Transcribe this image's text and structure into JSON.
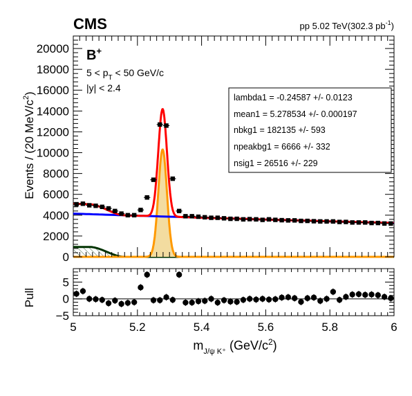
{
  "header": {
    "experiment": "CMS",
    "lumi_prefix": "pp 5.02 TeV(302.3 pb",
    "lumi_sup": "-1",
    "lumi_suffix": ")"
  },
  "annotations": {
    "particle": "B",
    "particle_sup": "+",
    "pt_cut_a": "5 < p",
    "pt_cut_sub": "T",
    "pt_cut_b": " < 50 GeV/c",
    "y_cut": "|y| < 2.4"
  },
  "fit_params": [
    {
      "label": "lambda1 = -0.24587 +/- 0.0123"
    },
    {
      "label": "mean1 =  5.278534 +/- 0.000197"
    },
    {
      "label": "nbkg1 =  182135 +/- 593"
    },
    {
      "label": "npeakbg1 =  6666 +/- 332"
    },
    {
      "label": "nsig1 =  26516 +/- 229"
    }
  ],
  "colors": {
    "total_fit": "#ff0000",
    "signal": "#ff9900",
    "signal_fill": "#f3dca0",
    "combinatorial_bkg": "#0000ff",
    "peaking_bkg": "#003300",
    "data": "#000000"
  },
  "chart_data": [
    {
      "type": "scatter",
      "title": "",
      "xlabel": "m",
      "xlabel_sub": "J/ψ K⁺",
      "xlabel_unit": " (GeV/c",
      "xlabel_unit_sup": "2",
      "xlabel_unit_end": ")",
      "ylabel": "Events / (20 MeV/c",
      "ylabel_sup": "2",
      "ylabel_end": ")",
      "xlim": [
        5.0,
        6.0
      ],
      "ylim": [
        0,
        21200
      ],
      "grid": false,
      "yticks": [
        "0",
        "2000",
        "4000",
        "6000",
        "8000",
        "10000",
        "12000",
        "14000",
        "16000",
        "18000",
        "20000"
      ],
      "x": [
        5.01,
        5.03,
        5.05,
        5.07,
        5.09,
        5.11,
        5.13,
        5.15,
        5.17,
        5.19,
        5.21,
        5.23,
        5.25,
        5.27,
        5.29,
        5.31,
        5.33,
        5.35,
        5.37,
        5.39,
        5.41,
        5.43,
        5.45,
        5.47,
        5.49,
        5.51,
        5.53,
        5.55,
        5.57,
        5.59,
        5.61,
        5.63,
        5.65,
        5.67,
        5.69,
        5.71,
        5.73,
        5.75,
        5.77,
        5.79,
        5.81,
        5.83,
        5.85,
        5.87,
        5.89,
        5.91,
        5.93,
        5.95,
        5.97,
        5.99
      ],
      "series": [
        {
          "values": [
            5050,
            5100,
            4950,
            4900,
            4800,
            4650,
            4400,
            4150,
            4000,
            4000,
            4500,
            5700,
            7400,
            12700,
            12600,
            7500,
            4400,
            3900,
            3900,
            3850,
            3800,
            3750,
            3750,
            3700,
            3650,
            3650,
            3600,
            3620,
            3600,
            3550,
            3600,
            3550,
            3520,
            3500,
            3500,
            3450,
            3450,
            3420,
            3400,
            3400,
            3400,
            3350,
            3350,
            3300,
            3300,
            3300,
            3250,
            3250,
            3200,
            3200
          ]
        }
      ]
    },
    {
      "type": "scatter",
      "title": "",
      "xlabel": "",
      "ylabel": "Pull",
      "xlim": [
        5.0,
        6.0
      ],
      "ylim": [
        -5,
        9
      ],
      "xticks": [
        "5",
        "5.2",
        "5.4",
        "5.6",
        "5.8",
        "6"
      ],
      "yticks": [
        "−5",
        "0",
        "5"
      ],
      "grid": false,
      "series": [
        {
          "values": [
            1.5,
            2.3,
            0.0,
            -0.1,
            -0.3,
            -1.3,
            -0.5,
            -1.5,
            -1.2,
            -1.0,
            3.4,
            7.2,
            -0.4,
            -0.4,
            0.5,
            -0.3,
            7.2,
            -1.1,
            -1.1,
            -0.7,
            -0.6,
            0.0,
            -1.1,
            -0.4,
            -0.8,
            -0.9,
            -0.3,
            0.0,
            -0.2,
            0.0,
            -0.2,
            -0.1,
            0.4,
            0.5,
            0.2,
            -0.9,
            0.2,
            0.4,
            -0.6,
            0.0,
            2.1,
            -0.3,
            0.6,
            1.3,
            1.4,
            1.2,
            1.3,
            1.1,
            0.6,
            0.2
          ]
        }
      ]
    }
  ]
}
